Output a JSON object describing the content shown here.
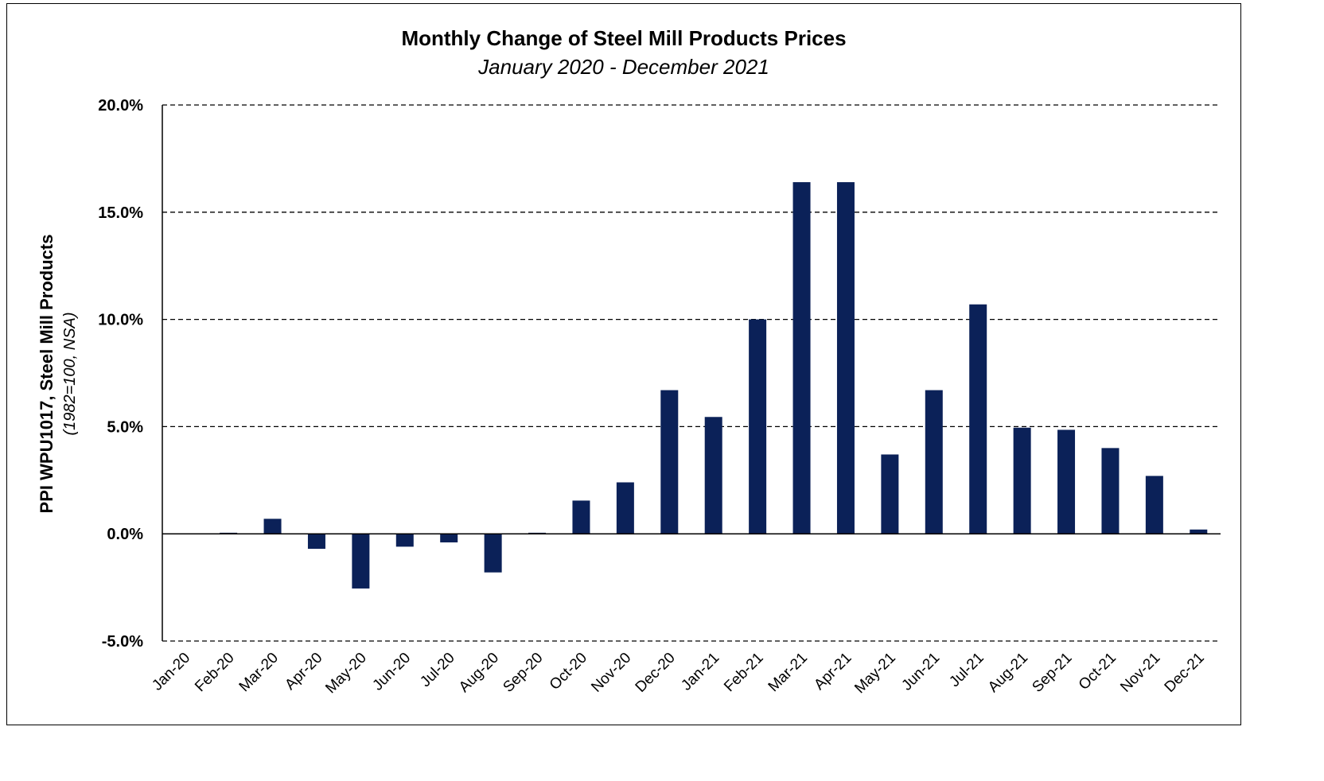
{
  "chart_data": {
    "type": "bar",
    "title": "Monthly Change of Steel Mill Products Prices",
    "subtitle": "January 2020 - December 2021",
    "ylabel": "PPI WPU1017, Steel Mill Products",
    "ylabel_sub": "(1982=100, NSA)",
    "xlabel": "",
    "ylim": [
      -5,
      20
    ],
    "yticks": [
      20,
      15,
      10,
      5,
      0,
      -5
    ],
    "ytick_labels": [
      "20.0%",
      "15.0%",
      "10.0%",
      "5.0%",
      "0.0%",
      "-5.0%"
    ],
    "grid": "horizontal dashed",
    "bar_color": "#0b2158",
    "categories": [
      "Jan-20",
      "Feb-20",
      "Mar-20",
      "Apr-20",
      "May-20",
      "Jun-20",
      "Jul-20",
      "Aug-20",
      "Sep-20",
      "Oct-20",
      "Nov-20",
      "Dec-20",
      "Jan-21",
      "Feb-21",
      "Mar-21",
      "Apr-21",
      "May-21",
      "Jun-21",
      "Jul-21",
      "Aug-21",
      "Sep-21",
      "Oct-21",
      "Nov-21",
      "Dec-21"
    ],
    "values": [
      0.0,
      0.05,
      0.7,
      -0.7,
      -2.55,
      -0.6,
      -0.4,
      -1.8,
      0.05,
      1.55,
      2.4,
      6.7,
      5.45,
      10.0,
      16.4,
      16.4,
      3.7,
      6.7,
      10.7,
      4.95,
      4.85,
      4.0,
      2.7,
      0.2
    ]
  }
}
